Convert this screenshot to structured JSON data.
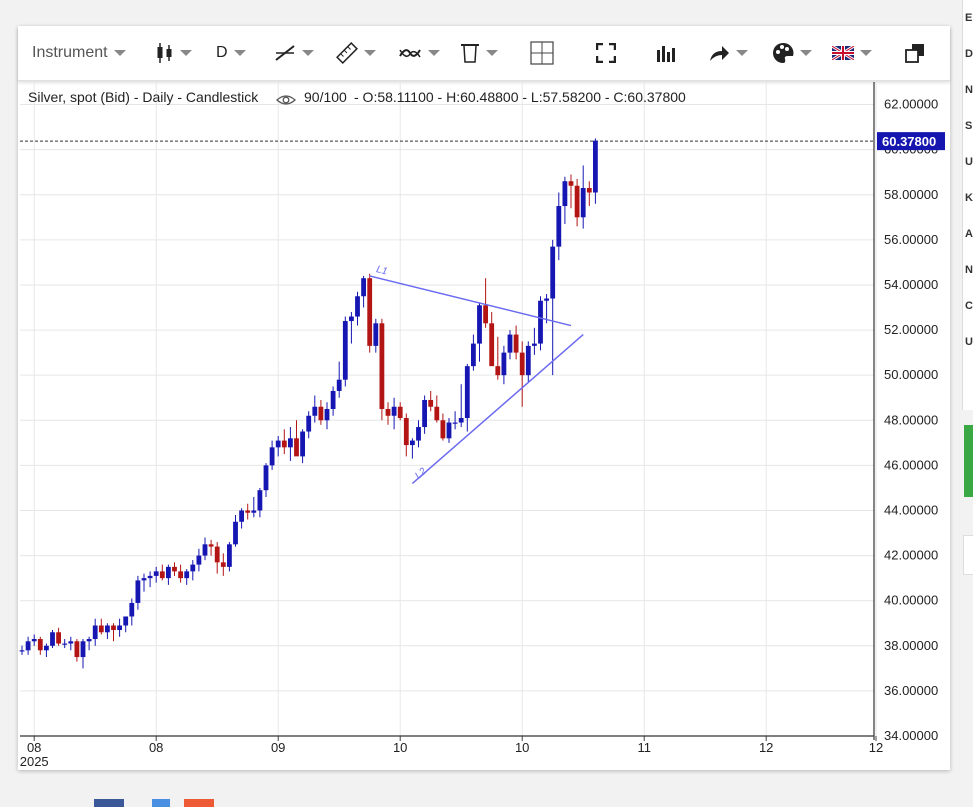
{
  "toolbar": {
    "instrument_label": "Instrument",
    "period_label": "D",
    "icons": [
      "candlestick-icon",
      "draw-line-icon",
      "ruler-icon",
      "indicator-icon",
      "trash-icon",
      "crosshair-icon",
      "fullscreen-icon",
      "volume-bars-icon",
      "share-icon",
      "palette-icon",
      "language-flag-icon",
      "popout-icon"
    ]
  },
  "header": {
    "title": "Silver, spot (Bid) - Daily - Candlestick",
    "counter": "90/100",
    "ohlc": "- O:58.11100 - H:60.48800 - L:57.58200 - C:60.37800"
  },
  "sidebar": {
    "letters": [
      "E",
      "D",
      "N",
      "S",
      "U",
      "K",
      "A",
      "N",
      "C",
      "U"
    ]
  },
  "colors": {
    "up": "#1616b3",
    "down": "#b31414",
    "trendline": "#6b6bf0",
    "price_tag": "#1515b0"
  },
  "chart_data": {
    "type": "candlestick",
    "title": "Silver, spot (Bid) - Daily - Candlestick",
    "last_price": 60.378,
    "last_price_label": "60.37800",
    "ylim": [
      34,
      63
    ],
    "y_ticks": [
      34,
      36,
      38,
      40,
      42,
      44,
      46,
      48,
      50,
      52,
      54,
      56,
      58,
      60,
      62
    ],
    "y_tick_labels": [
      "34.00000",
      "36.00000",
      "38.00000",
      "40.00000",
      "42.00000",
      "44.00000",
      "46.00000",
      "48.00000",
      "50.00000",
      "52.00000",
      "54.00000",
      "56.00000",
      "58.00000",
      "60.00000",
      "62.00000"
    ],
    "x_ticks": [
      {
        "label": "08",
        "sublabel": "2025",
        "index": 2
      },
      {
        "label": "08",
        "index": 22
      },
      {
        "label": "09",
        "index": 42
      },
      {
        "label": "10",
        "index": 62
      },
      {
        "label": "10",
        "index": 82
      },
      {
        "label": "11",
        "index": 102
      },
      {
        "label": "12",
        "index": 122
      },
      {
        "label": "12",
        "index": 140
      }
    ],
    "grid": true,
    "candles": [
      [
        37.8,
        38.0,
        37.6,
        37.8
      ],
      [
        37.8,
        38.4,
        37.6,
        38.2
      ],
      [
        38.2,
        38.5,
        38.0,
        38.3
      ],
      [
        38.3,
        38.4,
        37.6,
        37.8
      ],
      [
        37.8,
        38.1,
        37.5,
        38.0
      ],
      [
        38.0,
        38.7,
        37.9,
        38.6
      ],
      [
        38.6,
        38.8,
        38.0,
        38.1
      ],
      [
        38.1,
        38.3,
        37.9,
        38.1
      ],
      [
        38.1,
        38.4,
        37.8,
        38.2
      ],
      [
        38.2,
        38.3,
        37.3,
        37.5
      ],
      [
        37.5,
        38.3,
        37.0,
        38.2
      ],
      [
        38.2,
        38.4,
        37.8,
        38.3
      ],
      [
        38.3,
        39.2,
        38.0,
        38.9
      ],
      [
        38.9,
        39.2,
        38.5,
        38.6
      ],
      [
        38.6,
        39.0,
        38.3,
        38.9
      ],
      [
        38.9,
        39.0,
        38.2,
        38.7
      ],
      [
        38.7,
        39.2,
        38.4,
        38.9
      ],
      [
        38.9,
        39.3,
        38.6,
        39.3
      ],
      [
        39.3,
        40.1,
        38.9,
        39.9
      ],
      [
        39.9,
        41.1,
        39.6,
        40.9
      ],
      [
        40.9,
        41.2,
        40.4,
        41.0
      ],
      [
        41.0,
        41.3,
        40.6,
        41.1
      ],
      [
        41.1,
        41.5,
        40.8,
        41.3
      ],
      [
        41.3,
        41.6,
        40.9,
        41.0
      ],
      [
        41.0,
        41.6,
        40.7,
        41.5
      ],
      [
        41.5,
        41.7,
        41.1,
        41.3
      ],
      [
        41.3,
        41.6,
        40.8,
        41.0
      ],
      [
        41.0,
        41.4,
        40.7,
        41.3
      ],
      [
        41.3,
        41.8,
        40.9,
        41.6
      ],
      [
        41.6,
        42.3,
        41.3,
        42.0
      ],
      [
        42.0,
        42.8,
        41.8,
        42.5
      ],
      [
        42.5,
        42.7,
        42.0,
        42.4
      ],
      [
        42.4,
        42.6,
        41.2,
        41.7
      ],
      [
        41.7,
        42.1,
        41.1,
        41.5
      ],
      [
        41.5,
        42.6,
        41.3,
        42.5
      ],
      [
        42.5,
        43.8,
        42.4,
        43.5
      ],
      [
        43.5,
        44.1,
        43.2,
        44.0
      ],
      [
        44.0,
        44.3,
        43.6,
        43.9
      ],
      [
        43.9,
        44.6,
        43.7,
        44.0
      ],
      [
        44.0,
        45.0,
        43.7,
        44.9
      ],
      [
        44.9,
        46.1,
        44.6,
        46.0
      ],
      [
        46.0,
        47.1,
        45.8,
        46.8
      ],
      [
        46.8,
        47.3,
        46.4,
        47.1
      ],
      [
        47.1,
        47.6,
        46.5,
        46.8
      ],
      [
        46.8,
        47.7,
        46.2,
        47.2
      ],
      [
        47.2,
        48.0,
        46.5,
        46.4
      ],
      [
        46.4,
        47.6,
        46.1,
        47.5
      ],
      [
        47.5,
        48.4,
        47.2,
        48.2
      ],
      [
        48.2,
        49.1,
        47.9,
        48.6
      ],
      [
        48.6,
        48.9,
        47.8,
        48.0
      ],
      [
        48.0,
        48.8,
        47.6,
        48.5
      ],
      [
        48.5,
        49.5,
        48.2,
        49.3
      ],
      [
        49.3,
        50.6,
        49.0,
        49.8
      ],
      [
        49.8,
        52.6,
        49.5,
        52.4
      ],
      [
        52.4,
        52.8,
        51.4,
        52.6
      ],
      [
        52.6,
        53.7,
        52.2,
        53.5
      ],
      [
        53.5,
        54.4,
        53.0,
        54.3
      ],
      [
        54.3,
        54.5,
        51.0,
        51.3
      ],
      [
        51.3,
        52.5,
        51.0,
        52.3
      ],
      [
        52.3,
        52.5,
        48.0,
        48.5
      ],
      [
        48.5,
        48.8,
        47.8,
        48.2
      ],
      [
        48.2,
        49.0,
        47.6,
        48.6
      ],
      [
        48.6,
        48.8,
        48.0,
        48.1
      ],
      [
        48.1,
        48.3,
        46.4,
        46.9
      ],
      [
        46.9,
        47.2,
        46.3,
        47.1
      ],
      [
        47.1,
        48.0,
        46.8,
        47.7
      ],
      [
        47.7,
        49.1,
        47.4,
        48.9
      ],
      [
        48.9,
        49.3,
        48.4,
        48.6
      ],
      [
        48.6,
        49.1,
        47.9,
        48.0
      ],
      [
        48.0,
        48.3,
        47.1,
        47.2
      ],
      [
        47.2,
        48.1,
        47.0,
        47.9
      ],
      [
        47.9,
        48.4,
        47.6,
        47.9
      ],
      [
        47.9,
        49.6,
        47.7,
        48.1
      ],
      [
        48.1,
        50.5,
        47.5,
        50.4
      ],
      [
        50.4,
        51.8,
        50.2,
        51.4
      ],
      [
        51.4,
        53.2,
        50.6,
        53.1
      ],
      [
        53.1,
        54.3,
        52.1,
        52.3
      ],
      [
        52.3,
        52.8,
        50.5,
        50.4
      ],
      [
        50.4,
        51.7,
        49.8,
        50.0
      ],
      [
        50.0,
        51.3,
        49.6,
        51.0
      ],
      [
        51.0,
        52.0,
        50.7,
        51.8
      ],
      [
        51.8,
        52.2,
        50.7,
        51.0
      ],
      [
        51.0,
        51.5,
        48.6,
        50.0
      ],
      [
        50.0,
        51.5,
        49.7,
        51.3
      ],
      [
        51.3,
        52.1,
        50.9,
        51.4
      ],
      [
        51.4,
        53.5,
        51.1,
        53.3
      ],
      [
        53.3,
        53.6,
        52.3,
        53.4
      ],
      [
        53.4,
        56.0,
        50.0,
        55.7
      ],
      [
        55.7,
        58.1,
        55.1,
        57.5
      ],
      [
        57.5,
        58.8,
        56.7,
        58.6
      ],
      [
        58.6,
        58.9,
        57.4,
        58.4
      ],
      [
        58.4,
        58.7,
        56.6,
        57.0
      ],
      [
        57.0,
        59.3,
        56.5,
        58.3
      ],
      [
        58.3,
        58.6,
        57.5,
        58.1
      ],
      [
        58.1,
        60.5,
        57.6,
        60.4
      ]
    ],
    "annotations": [
      {
        "label": "L1",
        "from": [
          57,
          54.4
        ],
        "to": [
          90,
          52.2
        ]
      },
      {
        "label": "L2",
        "from": [
          64,
          45.2
        ],
        "to": [
          92,
          51.8
        ]
      }
    ]
  }
}
